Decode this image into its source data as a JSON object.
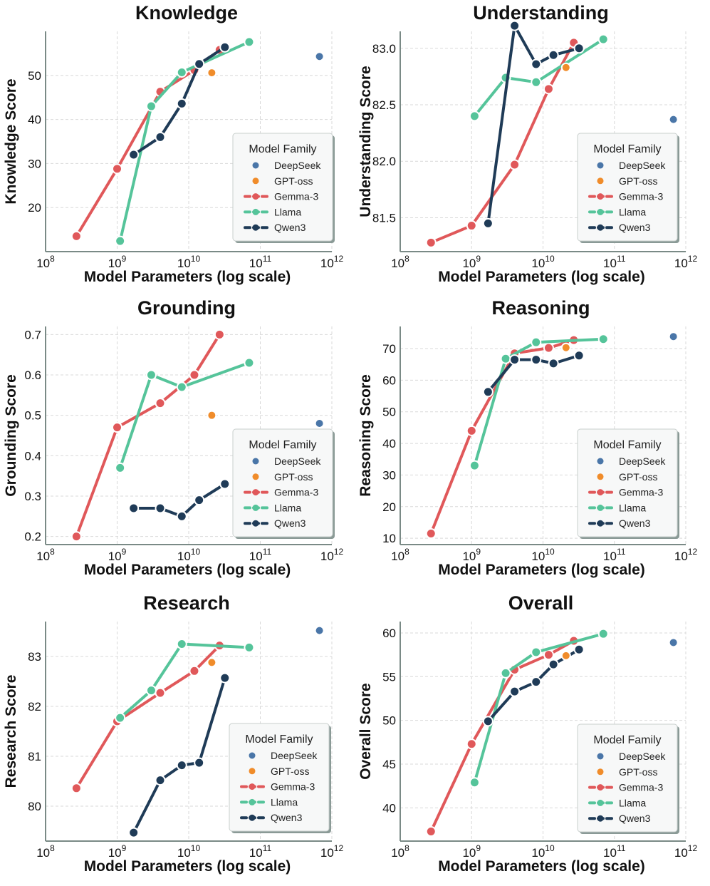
{
  "colors": {
    "DeepSeek": "#4a76a8",
    "GPT-oss": "#f08c2a",
    "Gemma-3": "#e0585a",
    "Llama": "#55c49a",
    "Qwen3": "#1f3b57",
    "grid": "#d9d9d9",
    "axis": "#7a8a86"
  },
  "legend": {
    "title": "Model Family",
    "entries": [
      "DeepSeek",
      "GPT-oss",
      "Gemma-3",
      "Llama",
      "Qwen3"
    ]
  },
  "chart_data": [
    {
      "type": "line",
      "title": "Knowledge",
      "xlabel": "Model Parameters (log scale)",
      "ylabel": "Knowledge Score",
      "xscale": "log",
      "xlim": [
        100000000.0,
        1000000000000.0
      ],
      "ylim": [
        10,
        60
      ],
      "yticks": [
        20,
        30,
        40,
        50
      ],
      "legend_position": "lower-right",
      "series": [
        {
          "name": "Gemma-3",
          "kind": "line",
          "x": [
            270000000.0,
            1000000000.0,
            4000000000.0,
            12000000000.0,
            27000000000.0
          ],
          "y": [
            13.5,
            28.8,
            46.3,
            51.2,
            55.8
          ]
        },
        {
          "name": "Llama",
          "kind": "line",
          "x": [
            1100000000.0,
            3000000000.0,
            8000000000.0,
            70000000000.0
          ],
          "y": [
            12.4,
            43.0,
            50.7,
            57.6
          ]
        },
        {
          "name": "Qwen3",
          "kind": "line",
          "x": [
            1700000000.0,
            4000000000.0,
            8000000000.0,
            14000000000.0,
            32000000000.0
          ],
          "y": [
            32.0,
            36.0,
            43.6,
            52.6,
            56.4
          ]
        },
        {
          "name": "GPT-oss",
          "kind": "point",
          "x": [
            21000000000.0
          ],
          "y": [
            50.6
          ]
        },
        {
          "name": "DeepSeek",
          "kind": "point",
          "x": [
            671000000000.0
          ],
          "y": [
            54.3
          ]
        }
      ]
    },
    {
      "type": "line",
      "title": "Understanding",
      "xlabel": "Model Parameters (log scale)",
      "ylabel": "Understanding Score",
      "xscale": "log",
      "xlim": [
        100000000.0,
        1000000000000.0
      ],
      "ylim": [
        81.2,
        83.15
      ],
      "yticks": [
        81.5,
        82.0,
        82.5,
        83.0
      ],
      "ytick_labels": [
        "81.5",
        "82.0",
        "82.5",
        "83.0"
      ],
      "legend_position": "lower-right",
      "series": [
        {
          "name": "Gemma-3",
          "kind": "line",
          "x": [
            270000000.0,
            1000000000.0,
            4000000000.0,
            12000000000.0,
            27000000000.0
          ],
          "y": [
            81.28,
            81.43,
            81.97,
            82.64,
            83.05
          ]
        },
        {
          "name": "Llama",
          "kind": "line",
          "x": [
            1100000000.0,
            3000000000.0,
            8000000000.0,
            70000000000.0
          ],
          "y": [
            82.4,
            82.74,
            82.7,
            83.08
          ]
        },
        {
          "name": "Qwen3",
          "kind": "line",
          "x": [
            1700000000.0,
            4000000000.0,
            8000000000.0,
            14000000000.0,
            32000000000.0
          ],
          "y": [
            81.45,
            83.2,
            82.86,
            82.94,
            83.0
          ]
        },
        {
          "name": "GPT-oss",
          "kind": "point",
          "x": [
            21000000000.0
          ],
          "y": [
            82.83
          ]
        },
        {
          "name": "DeepSeek",
          "kind": "point",
          "x": [
            671000000000.0
          ],
          "y": [
            82.37
          ]
        }
      ]
    },
    {
      "type": "line",
      "title": "Grounding",
      "xlabel": "Model Parameters (log scale)",
      "ylabel": "Grounding Score",
      "xscale": "log",
      "xlim": [
        100000000.0,
        1000000000000.0
      ],
      "ylim": [
        0.18,
        0.72
      ],
      "yticks": [
        0.2,
        0.3,
        0.4,
        0.5,
        0.6,
        0.7
      ],
      "ytick_labels": [
        "0.2",
        "0.3",
        "0.4",
        "0.5",
        "0.6",
        "0.7"
      ],
      "legend_position": "lower-right",
      "series": [
        {
          "name": "Gemma-3",
          "kind": "line",
          "x": [
            270000000.0,
            1000000000.0,
            4000000000.0,
            12000000000.0,
            27000000000.0
          ],
          "y": [
            0.2,
            0.47,
            0.53,
            0.6,
            0.7
          ]
        },
        {
          "name": "Llama",
          "kind": "line",
          "x": [
            1100000000.0,
            3000000000.0,
            8000000000.0,
            70000000000.0
          ],
          "y": [
            0.37,
            0.6,
            0.57,
            0.63
          ]
        },
        {
          "name": "Qwen3",
          "kind": "line",
          "x": [
            1700000000.0,
            4000000000.0,
            8000000000.0,
            14000000000.0,
            32000000000.0
          ],
          "y": [
            0.27,
            0.27,
            0.25,
            0.29,
            0.33
          ]
        },
        {
          "name": "GPT-oss",
          "kind": "point",
          "x": [
            21000000000.0
          ],
          "y": [
            0.5
          ]
        },
        {
          "name": "DeepSeek",
          "kind": "point",
          "x": [
            671000000000.0
          ],
          "y": [
            0.48
          ]
        }
      ]
    },
    {
      "type": "line",
      "title": "Reasoning",
      "xlabel": "Model Parameters (log scale)",
      "ylabel": "Reasoning Score",
      "xscale": "log",
      "xlim": [
        100000000.0,
        1000000000000.0
      ],
      "ylim": [
        8,
        77
      ],
      "yticks": [
        10,
        20,
        30,
        40,
        50,
        60,
        70
      ],
      "legend_position": "lower-right",
      "series": [
        {
          "name": "Gemma-3",
          "kind": "line",
          "x": [
            270000000.0,
            1000000000.0,
            4000000000.0,
            12000000000.0,
            27000000000.0
          ],
          "y": [
            11.5,
            44.0,
            68.5,
            70.2,
            72.7
          ]
        },
        {
          "name": "Llama",
          "kind": "line",
          "x": [
            1100000000.0,
            3000000000.0,
            8000000000.0,
            70000000000.0
          ],
          "y": [
            33.0,
            66.8,
            72.0,
            73.0
          ]
        },
        {
          "name": "Qwen3",
          "kind": "line",
          "x": [
            1700000000.0,
            4000000000.0,
            8000000000.0,
            14000000000.0,
            32000000000.0
          ],
          "y": [
            56.3,
            66.5,
            66.5,
            65.3,
            67.8
          ]
        },
        {
          "name": "GPT-oss",
          "kind": "point",
          "x": [
            21000000000.0
          ],
          "y": [
            70.3
          ]
        },
        {
          "name": "DeepSeek",
          "kind": "point",
          "x": [
            671000000000.0
          ],
          "y": [
            73.8
          ]
        }
      ]
    },
    {
      "type": "line",
      "title": "Research",
      "xlabel": "Model Parameters (log scale)",
      "ylabel": "Research Score",
      "xscale": "log",
      "xlim": [
        100000000.0,
        1000000000000.0
      ],
      "ylim": [
        79.3,
        83.7
      ],
      "yticks": [
        80,
        81,
        82,
        83
      ],
      "legend_position": "lower-right",
      "series": [
        {
          "name": "Gemma-3",
          "kind": "line",
          "x": [
            270000000.0,
            1000000000.0,
            4000000000.0,
            12000000000.0,
            27000000000.0
          ],
          "y": [
            80.36,
            81.7,
            82.27,
            82.71,
            83.22
          ]
        },
        {
          "name": "Llama",
          "kind": "line",
          "x": [
            1100000000.0,
            3000000000.0,
            8000000000.0,
            70000000000.0
          ],
          "y": [
            81.77,
            82.32,
            83.25,
            83.18
          ]
        },
        {
          "name": "Qwen3",
          "kind": "line",
          "x": [
            1700000000.0,
            4000000000.0,
            8000000000.0,
            14000000000.0,
            32000000000.0
          ],
          "y": [
            79.47,
            80.52,
            80.82,
            80.87,
            82.57
          ]
        },
        {
          "name": "GPT-oss",
          "kind": "point",
          "x": [
            21000000000.0
          ],
          "y": [
            82.88
          ]
        },
        {
          "name": "DeepSeek",
          "kind": "point",
          "x": [
            671000000000.0
          ],
          "y": [
            83.52
          ]
        }
      ]
    },
    {
      "type": "line",
      "title": "Overall",
      "xlabel": "Model Parameters (log scale)",
      "ylabel": "Overall Score",
      "xscale": "log",
      "xlim": [
        100000000.0,
        1000000000000.0
      ],
      "ylim": [
        36.2,
        61.3
      ],
      "yticks": [
        40,
        45,
        50,
        55,
        60
      ],
      "legend_position": "lower-right",
      "series": [
        {
          "name": "Gemma-3",
          "kind": "line",
          "x": [
            270000000.0,
            1000000000.0,
            4000000000.0,
            12000000000.0,
            27000000000.0
          ],
          "y": [
            37.3,
            47.3,
            55.8,
            57.5,
            59.1
          ]
        },
        {
          "name": "Llama",
          "kind": "line",
          "x": [
            1100000000.0,
            3000000000.0,
            8000000000.0,
            70000000000.0
          ],
          "y": [
            42.9,
            55.4,
            57.8,
            59.9
          ]
        },
        {
          "name": "Qwen3",
          "kind": "line",
          "x": [
            1700000000.0,
            4000000000.0,
            8000000000.0,
            14000000000.0,
            32000000000.0
          ],
          "y": [
            49.9,
            53.3,
            54.4,
            56.4,
            58.1
          ]
        },
        {
          "name": "GPT-oss",
          "kind": "point",
          "x": [
            21000000000.0
          ],
          "y": [
            57.4
          ]
        },
        {
          "name": "DeepSeek",
          "kind": "point",
          "x": [
            671000000000.0
          ],
          "y": [
            58.9
          ]
        }
      ]
    }
  ]
}
